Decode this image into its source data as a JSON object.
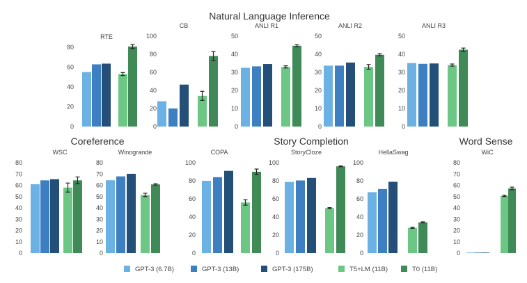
{
  "colors": {
    "GPT-3 (6.7B)": "#6cb1e3",
    "GPT-3 (13B)": "#3d7fc1",
    "GPT-3 (175B)": "#244f78",
    "T5+LM (11B)": "#6cc784",
    "T0 (11B)": "#3f8a56"
  },
  "group_titles": [
    {
      "id": "nli",
      "text": "Natural Language Inference"
    },
    {
      "id": "coref",
      "text": "Coreference"
    },
    {
      "id": "story",
      "text": "Story Completion"
    },
    {
      "id": "wsd",
      "text": "Word Sense"
    }
  ],
  "legend": [
    "GPT-3 (6.7B)",
    "GPT-3 (13B)",
    "GPT-3 (175B)",
    "T5+LM (11B)",
    "T0 (11B)"
  ],
  "chart_data": [
    {
      "type": "bar",
      "title": "RTE",
      "group": "Natural Language Inference",
      "series": [
        {
          "name": "GPT-3 (6.7B)",
          "value": 55.0
        },
        {
          "name": "GPT-3 (13B)",
          "value": 62.8
        },
        {
          "name": "GPT-3 (175B)",
          "value": 63.5
        },
        {
          "name": "T5+LM (11B)",
          "value": 53.0,
          "err": 1.5
        },
        {
          "name": "T0 (11B)",
          "value": 80.8,
          "err": 2.0
        }
      ],
      "ylim": [
        0,
        80
      ],
      "yticks": [
        0,
        20,
        40,
        60,
        80
      ]
    },
    {
      "type": "bar",
      "title": "CB",
      "group": "Natural Language Inference",
      "series": [
        {
          "name": "GPT-3 (6.7B)",
          "value": 28.0
        },
        {
          "name": "GPT-3 (13B)",
          "value": 20.0
        },
        {
          "name": "GPT-3 (175B)",
          "value": 46.4
        },
        {
          "name": "T5+LM (11B)",
          "value": 34.0,
          "err": 5.0
        },
        {
          "name": "T0 (11B)",
          "value": 78.0,
          "err": 5.0
        }
      ],
      "ylim": [
        0,
        100
      ],
      "yticks": [
        0,
        20,
        40,
        60,
        80,
        100
      ]
    },
    {
      "type": "bar",
      "title": "ANLI R1",
      "group": "Natural Language Inference",
      "series": [
        {
          "name": "GPT-3 (6.7B)",
          "value": 32.5
        },
        {
          "name": "GPT-3 (13B)",
          "value": 33.3
        },
        {
          "name": "GPT-3 (175B)",
          "value": 34.6
        },
        {
          "name": "T5+LM (11B)",
          "value": 33.0,
          "err": 0.6
        },
        {
          "name": "T0 (11B)",
          "value": 44.7,
          "err": 0.6
        }
      ],
      "ylim": [
        0,
        50
      ],
      "yticks": [
        0,
        10,
        20,
        30,
        40,
        50
      ]
    },
    {
      "type": "bar",
      "title": "ANLI R2",
      "group": "Natural Language Inference",
      "series": [
        {
          "name": "GPT-3 (6.7B)",
          "value": 33.7
        },
        {
          "name": "GPT-3 (13B)",
          "value": 33.7
        },
        {
          "name": "GPT-3 (175B)",
          "value": 35.4
        },
        {
          "name": "T5+LM (11B)",
          "value": 33.0,
          "err": 1.3
        },
        {
          "name": "T0 (11B)",
          "value": 39.7,
          "err": 0.6
        }
      ],
      "ylim": [
        0,
        50
      ],
      "yticks": [
        0,
        10,
        20,
        30,
        40,
        50
      ]
    },
    {
      "type": "bar",
      "title": "ANLI R3",
      "group": "Natural Language Inference",
      "series": [
        {
          "name": "GPT-3 (6.7B)",
          "value": 35.1
        },
        {
          "name": "GPT-3 (13B)",
          "value": 34.7
        },
        {
          "name": "GPT-3 (175B)",
          "value": 34.9
        },
        {
          "name": "T5+LM (11B)",
          "value": 34.0,
          "err": 0.6
        },
        {
          "name": "T0 (11B)",
          "value": 42.5,
          "err": 0.9
        }
      ],
      "ylim": [
        0,
        50
      ],
      "yticks": [
        0,
        10,
        20,
        30,
        40,
        50
      ]
    },
    {
      "type": "bar",
      "title": "WSC",
      "group": "Coreference",
      "series": [
        {
          "name": "GPT-3 (6.7B)",
          "value": 61.0
        },
        {
          "name": "GPT-3 (13B)",
          "value": 64.4
        },
        {
          "name": "GPT-3 (175B)",
          "value": 65.4
        },
        {
          "name": "T5+LM (11B)",
          "value": 58.0,
          "err": 4.0
        },
        {
          "name": "T0 (11B)",
          "value": 64.4,
          "err": 3.0
        }
      ],
      "ylim": [
        0,
        80
      ],
      "yticks": [
        0,
        10,
        20,
        30,
        40,
        50,
        60,
        70,
        80
      ]
    },
    {
      "type": "bar",
      "title": "Winogrande",
      "group": "Coreference",
      "series": [
        {
          "name": "GPT-3 (6.7B)",
          "value": 64.5
        },
        {
          "name": "GPT-3 (13B)",
          "value": 67.9
        },
        {
          "name": "GPT-3 (175B)",
          "value": 70.2
        },
        {
          "name": "T5+LM (11B)",
          "value": 51.5,
          "err": 1.5
        },
        {
          "name": "T0 (11B)",
          "value": 60.8,
          "err": 0.6
        }
      ],
      "ylim": [
        0,
        80
      ],
      "yticks": [
        0,
        10,
        20,
        30,
        40,
        50,
        60,
        70,
        80
      ]
    },
    {
      "type": "bar",
      "title": "COPA",
      "group": "Story Completion",
      "series": [
        {
          "name": "GPT-3 (6.7B)",
          "value": 80.0
        },
        {
          "name": "GPT-3 (13B)",
          "value": 84.0
        },
        {
          "name": "GPT-3 (175B)",
          "value": 91.0
        },
        {
          "name": "T5+LM (11B)",
          "value": 56.0,
          "err": 3.0
        },
        {
          "name": "T0 (11B)",
          "value": 90.0,
          "err": 3.0
        }
      ],
      "ylim": [
        0,
        100
      ],
      "yticks": [
        0,
        20,
        40,
        60,
        80,
        100
      ]
    },
    {
      "type": "bar",
      "title": "StoryCloze",
      "group": "Story Completion",
      "series": [
        {
          "name": "GPT-3 (6.7B)",
          "value": 78.7
        },
        {
          "name": "GPT-3 (13B)",
          "value": 80.4
        },
        {
          "name": "GPT-3 (175B)",
          "value": 83.2
        },
        {
          "name": "T5+LM (11B)",
          "value": 49.8,
          "err": 0.5
        },
        {
          "name": "T0 (11B)",
          "value": 96.0,
          "err": 0.4
        }
      ],
      "ylim": [
        0,
        100
      ],
      "yticks": [
        0,
        20,
        40,
        60,
        80,
        100
      ]
    },
    {
      "type": "bar",
      "title": "HellaSwag",
      "group": "Story Completion",
      "series": [
        {
          "name": "GPT-3 (6.7B)",
          "value": 67.4
        },
        {
          "name": "GPT-3 (13B)",
          "value": 70.9
        },
        {
          "name": "GPT-3 (175B)",
          "value": 78.9
        },
        {
          "name": "T5+LM (11B)",
          "value": 28.0,
          "err": 0.6
        },
        {
          "name": "T0 (11B)",
          "value": 34.0,
          "err": 0.6
        }
      ],
      "ylim": [
        0,
        100
      ],
      "yticks": [
        0,
        20,
        40,
        60,
        80,
        100
      ]
    },
    {
      "type": "bar",
      "title": "WiC",
      "group": "Word Sense",
      "series": [
        {
          "name": "GPT-3 (6.7B)",
          "value": 0.5
        },
        {
          "name": "GPT-3 (13B)",
          "value": 0.5
        },
        {
          "name": "GPT-3 (175B)",
          "value": 0.5
        },
        {
          "name": "T5+LM (11B)",
          "value": 50.7,
          "err": 0.6
        },
        {
          "name": "T0 (11B)",
          "value": 57.2,
          "err": 1.2
        }
      ],
      "ylim": [
        0,
        80
      ],
      "yticks": [
        0,
        10,
        20,
        30,
        40,
        50,
        60,
        70,
        80
      ]
    }
  ]
}
